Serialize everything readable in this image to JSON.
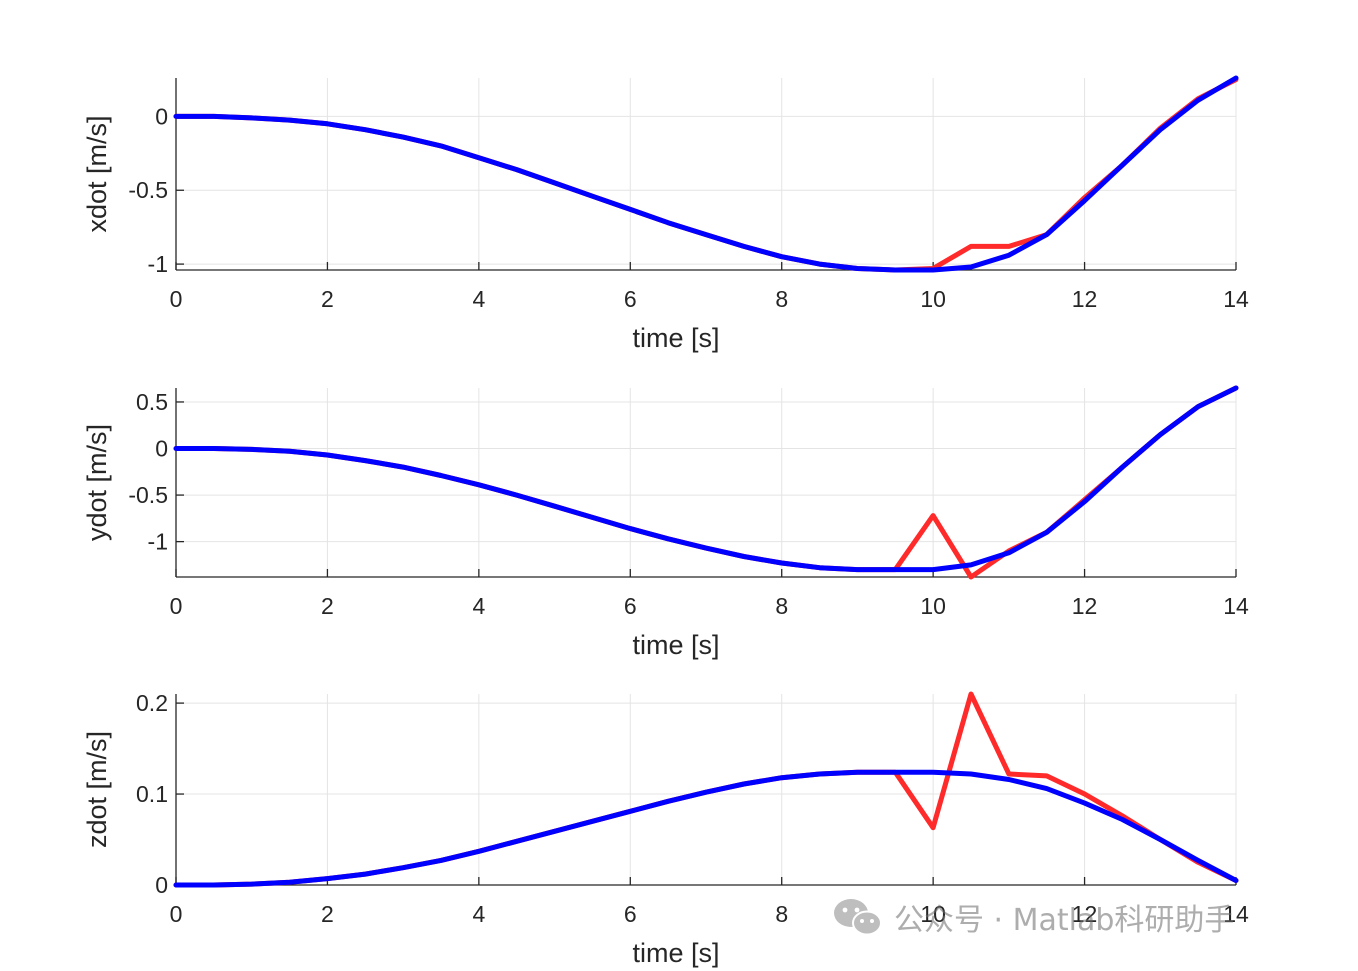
{
  "chart_data": [
    {
      "type": "line",
      "ylabel": "xdot [m/s]",
      "xlabel": "time [s]",
      "xlim": [
        0,
        14
      ],
      "ylim": [
        -1.04,
        0.26
      ],
      "xticks": [
        0,
        2,
        4,
        6,
        8,
        10,
        12,
        14
      ],
      "yticks": [
        -1,
        -0.5,
        0
      ],
      "ytick_labels": [
        "-1",
        "-0.5",
        "0"
      ],
      "grid": true,
      "x": [
        0,
        0.5,
        1,
        1.5,
        2,
        2.5,
        3,
        3.5,
        4,
        4.5,
        5,
        5.5,
        6,
        6.5,
        7,
        7.5,
        8,
        8.5,
        9,
        9.5,
        10,
        10.5,
        11,
        11.5,
        12,
        12.5,
        13,
        13.5,
        14
      ],
      "series": [
        {
          "color": "#ff2a2a",
          "values": [
            0,
            0,
            -0.01,
            -0.025,
            -0.05,
            -0.09,
            -0.14,
            -0.2,
            -0.28,
            -0.36,
            -0.45,
            -0.54,
            -0.63,
            -0.72,
            -0.8,
            -0.88,
            -0.95,
            -1.0,
            -1.03,
            -1.04,
            -1.03,
            -0.88,
            -0.88,
            -0.8,
            -0.55,
            -0.33,
            -0.08,
            0.12,
            0.25
          ]
        },
        {
          "color": "#0000ff",
          "values": [
            0,
            0,
            -0.01,
            -0.025,
            -0.05,
            -0.09,
            -0.14,
            -0.2,
            -0.28,
            -0.36,
            -0.45,
            -0.54,
            -0.63,
            -0.72,
            -0.8,
            -0.88,
            -0.95,
            -1.0,
            -1.03,
            -1.04,
            -1.04,
            -1.02,
            -0.94,
            -0.8,
            -0.57,
            -0.33,
            -0.09,
            0.11,
            0.26
          ]
        }
      ]
    },
    {
      "type": "line",
      "ylabel": "ydot [m/s]",
      "xlabel": "time [s]",
      "xlim": [
        0,
        14
      ],
      "ylim": [
        -1.38,
        0.65
      ],
      "xticks": [
        0,
        2,
        4,
        6,
        8,
        10,
        12,
        14
      ],
      "yticks": [
        -1,
        -0.5,
        0,
        0.5
      ],
      "ytick_labels": [
        "-1",
        "-0.5",
        "0",
        "0.5"
      ],
      "grid": true,
      "x": [
        0,
        0.5,
        1,
        1.5,
        2,
        2.5,
        3,
        3.5,
        4,
        4.5,
        5,
        5.5,
        6,
        6.5,
        7,
        7.5,
        8,
        8.5,
        9,
        9.5,
        10,
        10.5,
        11,
        11.5,
        12,
        12.5,
        13,
        13.5,
        14
      ],
      "series": [
        {
          "color": "#ff2a2a",
          "values": [
            0,
            0,
            -0.01,
            -0.03,
            -0.07,
            -0.13,
            -0.2,
            -0.29,
            -0.39,
            -0.5,
            -0.62,
            -0.74,
            -0.86,
            -0.97,
            -1.07,
            -1.16,
            -1.23,
            -1.28,
            -1.3,
            -1.3,
            -0.72,
            -1.38,
            -1.1,
            -0.9,
            -0.55,
            -0.2,
            0.15,
            0.45,
            0.65
          ]
        },
        {
          "color": "#0000ff",
          "values": [
            0,
            0,
            -0.01,
            -0.03,
            -0.07,
            -0.13,
            -0.2,
            -0.29,
            -0.39,
            -0.5,
            -0.62,
            -0.74,
            -0.86,
            -0.97,
            -1.07,
            -1.16,
            -1.23,
            -1.28,
            -1.3,
            -1.3,
            -1.3,
            -1.25,
            -1.12,
            -0.9,
            -0.57,
            -0.2,
            0.15,
            0.45,
            0.65
          ]
        }
      ]
    },
    {
      "type": "line",
      "ylabel": "zdot [m/s]",
      "xlabel": "time [s]",
      "xlim": [
        0,
        14
      ],
      "ylim": [
        0,
        0.21
      ],
      "xticks": [
        0,
        2,
        4,
        6,
        8,
        10,
        12,
        14
      ],
      "yticks": [
        0,
        0.1,
        0.2
      ],
      "ytick_labels": [
        "0",
        "0.1",
        "0.2"
      ],
      "grid": true,
      "x": [
        0,
        0.5,
        1,
        1.5,
        2,
        2.5,
        3,
        3.5,
        4,
        4.5,
        5,
        5.5,
        6,
        6.5,
        7,
        7.5,
        8,
        8.5,
        9,
        9.5,
        10,
        10.5,
        11,
        11.5,
        12,
        12.5,
        13,
        13.5,
        14
      ],
      "series": [
        {
          "color": "#ff2a2a",
          "values": [
            0,
            0,
            0.001,
            0.003,
            0.007,
            0.012,
            0.019,
            0.027,
            0.037,
            0.048,
            0.059,
            0.07,
            0.081,
            0.092,
            0.102,
            0.111,
            0.118,
            0.122,
            0.124,
            0.124,
            0.063,
            0.21,
            0.122,
            0.12,
            0.1,
            0.076,
            0.05,
            0.025,
            0.005
          ]
        },
        {
          "color": "#0000ff",
          "values": [
            0,
            0,
            0.001,
            0.003,
            0.007,
            0.012,
            0.019,
            0.027,
            0.037,
            0.048,
            0.059,
            0.07,
            0.081,
            0.092,
            0.102,
            0.111,
            0.118,
            0.122,
            0.124,
            0.124,
            0.124,
            0.122,
            0.116,
            0.106,
            0.09,
            0.072,
            0.05,
            0.027,
            0.005
          ]
        }
      ]
    }
  ],
  "watermark": {
    "icon": "wechat-icon",
    "text": "公众号 · Matlab科研助手"
  }
}
